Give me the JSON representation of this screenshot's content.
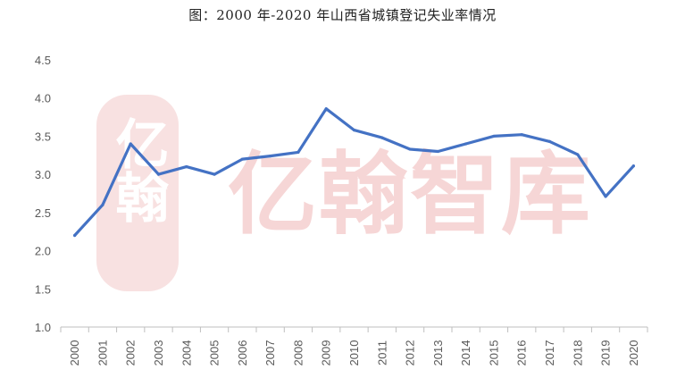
{
  "title": "图：2000 年-2020 年山西省城镇登记失业率情况",
  "watermark": {
    "text": "亿翰智库",
    "seal_text": "亿翰",
    "color": "#f3c9c9"
  },
  "colors": {
    "line": "#4472c4",
    "axis": "#bfbfbf",
    "tick_text": "#595959"
  },
  "chart_data": {
    "type": "line",
    "title": "图：2000 年-2020 年山西省城镇登记失业率情况",
    "xlabel": "",
    "ylabel": "",
    "x": [
      "2000",
      "2001",
      "2002",
      "2003",
      "2004",
      "2005",
      "2006",
      "2007",
      "2008",
      "2009",
      "2010",
      "2011",
      "2012",
      "2013",
      "2014",
      "2015",
      "2016",
      "2017",
      "2018",
      "2019",
      "2020"
    ],
    "series": [
      {
        "values": [
          2.2,
          2.6,
          3.4,
          3.0,
          3.1,
          3.0,
          3.2,
          3.24,
          3.29,
          3.86,
          3.58,
          3.48,
          3.33,
          3.3,
          3.4,
          3.5,
          3.52,
          3.43,
          3.26,
          2.71,
          3.11
        ]
      }
    ],
    "ylim": [
      1.0,
      4.5
    ],
    "yticks": [
      "1.0",
      "1.5",
      "2.0",
      "2.5",
      "3.0",
      "3.5",
      "4.0",
      "4.5"
    ],
    "grid": false,
    "legend": "none"
  }
}
